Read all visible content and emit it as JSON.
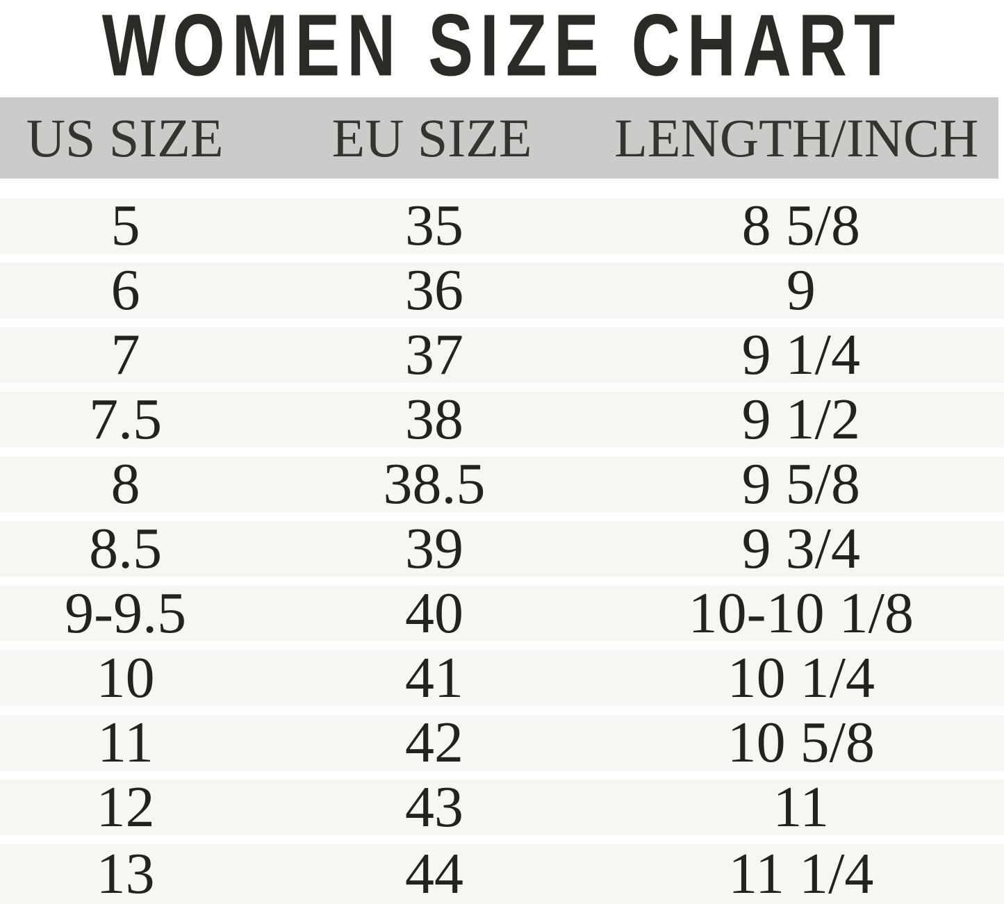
{
  "title": "WOMEN SIZE CHART",
  "colors": {
    "header_band_bg": "#cbcbc9",
    "row_bg": "#f7f6f3",
    "divider": "#ffffff",
    "title_text": "#2b2a24",
    "header_text": "#35342e",
    "cell_text": "#24221c"
  },
  "chart_data": {
    "type": "table",
    "title": "WOMEN SIZE CHART",
    "columns": [
      "US SIZE",
      "EU SIZE",
      "LENGTH/INCH"
    ],
    "rows": [
      [
        "5",
        "35",
        "8 5/8"
      ],
      [
        "6",
        "36",
        "9"
      ],
      [
        "7",
        "37",
        "9 1/4"
      ],
      [
        "7.5",
        "38",
        "9 1/2"
      ],
      [
        "8",
        "38.5",
        "9 5/8"
      ],
      [
        "8.5",
        "39",
        "9 3/4"
      ],
      [
        "9-9.5",
        "40",
        "10-10 1/8"
      ],
      [
        "10",
        "41",
        "10 1/4"
      ],
      [
        "11",
        "42",
        "10 5/8"
      ],
      [
        "12",
        "43",
        "11"
      ],
      [
        "13",
        "44",
        "11 1/4"
      ]
    ]
  }
}
